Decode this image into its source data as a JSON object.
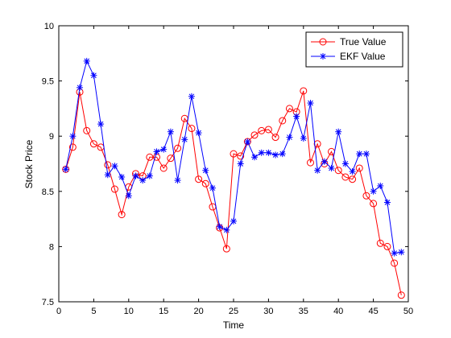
{
  "chart_data": {
    "type": "line",
    "xlabel": "Time",
    "ylabel": "Stock Price",
    "xlim": [
      0,
      50
    ],
    "ylim": [
      7.5,
      10
    ],
    "xticks": [
      0,
      5,
      10,
      15,
      20,
      25,
      30,
      35,
      40,
      45,
      50
    ],
    "yticks": [
      7.5,
      8,
      8.5,
      9,
      9.5,
      10
    ],
    "grid": false,
    "legend_position": "top-right",
    "x": [
      1,
      2,
      3,
      4,
      5,
      6,
      7,
      8,
      9,
      10,
      11,
      12,
      13,
      14,
      15,
      16,
      17,
      18,
      19,
      20,
      21,
      22,
      23,
      24,
      25,
      26,
      27,
      28,
      29,
      30,
      31,
      32,
      33,
      34,
      35,
      36,
      37,
      38,
      39,
      40,
      41,
      42,
      43,
      44,
      45,
      46,
      47,
      48,
      49
    ],
    "series": [
      {
        "name": "True Value",
        "color": "#ff0000",
        "marker": "circle",
        "values": [
          8.7,
          8.9,
          9.4,
          9.05,
          8.93,
          8.9,
          8.74,
          8.52,
          8.29,
          8.54,
          8.66,
          8.64,
          8.81,
          8.81,
          8.71,
          8.8,
          8.89,
          9.16,
          9.07,
          8.61,
          8.57,
          8.36,
          8.17,
          7.98,
          8.84,
          8.82,
          8.95,
          9.01,
          9.05,
          9.06,
          8.99,
          9.14,
          9.25,
          9.22,
          9.41,
          8.76,
          8.93,
          8.75,
          8.86,
          8.69,
          8.63,
          8.61,
          8.71,
          8.46,
          8.39,
          8.03,
          8.0,
          7.85,
          7.56
        ]
      },
      {
        "name": "EKF Value",
        "color": "#0000ff",
        "marker": "star",
        "values": [
          8.7,
          9.0,
          9.44,
          9.68,
          9.55,
          9.11,
          8.65,
          8.73,
          8.63,
          8.46,
          8.64,
          8.6,
          8.64,
          8.86,
          8.88,
          9.04,
          8.6,
          8.97,
          9.36,
          9.03,
          8.69,
          8.53,
          8.18,
          8.15,
          8.23,
          8.75,
          8.95,
          8.81,
          8.85,
          8.85,
          8.83,
          8.84,
          8.99,
          9.18,
          8.98,
          9.3,
          8.69,
          8.77,
          8.71,
          9.04,
          8.75,
          8.68,
          8.84,
          8.84,
          8.5,
          8.55,
          8.4,
          7.94,
          7.95
        ]
      }
    ]
  }
}
